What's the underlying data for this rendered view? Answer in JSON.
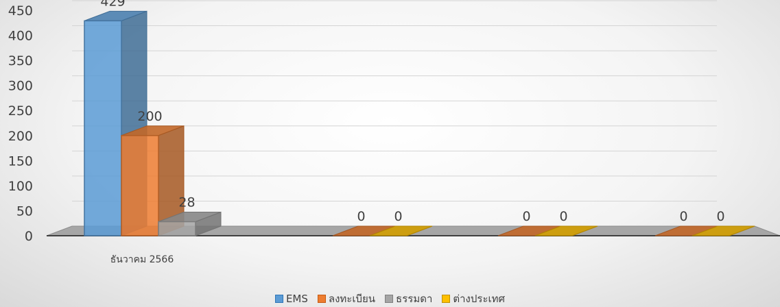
{
  "chart_data": {
    "type": "bar",
    "style": "3d-clustered-column",
    "categories": [
      "ธันวาคม 2566",
      "",
      "",
      ""
    ],
    "series": [
      {
        "name": "EMS",
        "values": [
          429,
          null,
          null,
          null
        ],
        "labels": [
          "429",
          "",
          "",
          ""
        ],
        "color": "#5b9bd5"
      },
      {
        "name": "ลงทะเบียน",
        "values": [
          200,
          0,
          0,
          0
        ],
        "labels": [
          "200",
          "0",
          "0",
          "0"
        ],
        "color": "#ed7d31"
      },
      {
        "name": "ธรรมดา",
        "values": [
          28,
          null,
          null,
          null
        ],
        "labels": [
          "28",
          "",
          "",
          ""
        ],
        "color": "#a5a5a5"
      },
      {
        "name": "ต่างประเทศ",
        "values": [
          null,
          0,
          0,
          0
        ],
        "labels": [
          "",
          "0",
          "0",
          "0"
        ],
        "color": "#ffc000"
      }
    ],
    "yticks": [
      "0",
      "50",
      "100",
      "150",
      "200",
      "250",
      "300",
      "350",
      "400",
      "450"
    ],
    "ylim": [
      0,
      450
    ],
    "grid": true,
    "legend_position": "bottom",
    "title": "",
    "xlabel": "",
    "ylabel": ""
  }
}
